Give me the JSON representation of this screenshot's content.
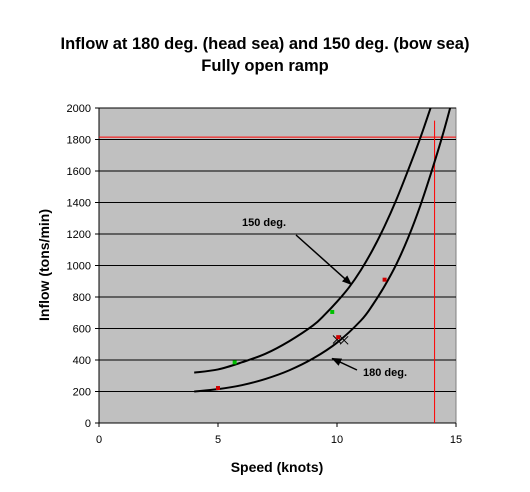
{
  "chart_data": {
    "type": "line",
    "title": "Inflow at 180 deg. (head sea) and 150 deg. (bow sea)",
    "subtitle": "Fully open ramp",
    "xlabel": "Speed (knots)",
    "ylabel": "Inflow (tons/min)",
    "xlim": [
      0,
      15
    ],
    "ylim": [
      0,
      2000
    ],
    "x_ticks": [
      "0",
      "5",
      "10",
      "15"
    ],
    "y_ticks": [
      "0",
      "200",
      "400",
      "600",
      "800",
      "1000",
      "1200",
      "1400",
      "1600",
      "1800",
      "2000"
    ],
    "grid": "horizontal",
    "plot_background": "#c0c0c0",
    "series": [
      {
        "x": [
          4,
          5,
          6,
          7,
          8,
          9,
          10,
          11,
          11.5,
          12,
          12.5,
          13,
          13.5,
          14,
          14.5,
          15
        ],
        "y": [
          200,
          215,
          240,
          280,
          335,
          410,
          510,
          650,
          750,
          870,
          1010,
          1180,
          1380,
          1610,
          1860,
          2140
        ],
        "color": "#000000"
      },
      {
        "x": [
          4,
          5,
          6,
          7,
          8,
          9,
          9.5,
          10,
          10.5,
          11,
          11.5,
          12,
          12.5,
          13,
          13.5,
          14,
          14.4
        ],
        "y": [
          320,
          340,
          385,
          440,
          520,
          620,
          690,
          770,
          860,
          970,
          1100,
          1250,
          1420,
          1610,
          1810,
          2030,
          2200
        ],
        "color": "#000000"
      }
    ],
    "markers": [
      {
        "x": 5.0,
        "y": 222,
        "color": "#d00000",
        "shape": "square"
      },
      {
        "x": 5.7,
        "y": 385,
        "color": "#00c000",
        "shape": "square"
      },
      {
        "x": 9.8,
        "y": 705,
        "color": "#00c000",
        "shape": "square"
      },
      {
        "x": 10.0,
        "y": 530,
        "color": "#000000",
        "shape": "x"
      },
      {
        "x": 10.3,
        "y": 525,
        "color": "#000000",
        "shape": "x"
      },
      {
        "x": 10.05,
        "y": 545,
        "color": "#d00000",
        "shape": "square"
      },
      {
        "x": 12.0,
        "y": 910,
        "color": "#d00000",
        "shape": "square"
      }
    ],
    "reference_lines": [
      {
        "orientation": "horizontal",
        "value": 1815,
        "color": "#ff0000"
      },
      {
        "orientation": "vertical",
        "value": 14.1,
        "color": "#ff0000"
      }
    ],
    "annotations": [
      {
        "text": "150 deg.",
        "arrow_to": {
          "x": 10.6,
          "y": 880
        }
      },
      {
        "text": "180 deg.",
        "arrow_to": {
          "x": 9.8,
          "y": 410
        }
      }
    ]
  }
}
